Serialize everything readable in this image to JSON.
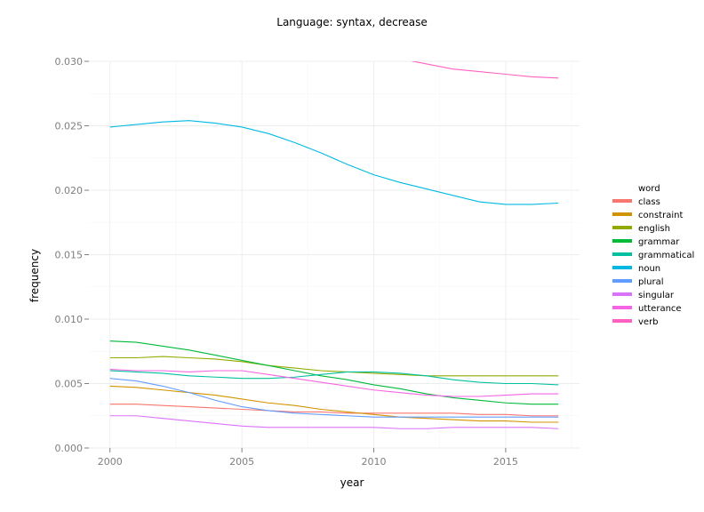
{
  "chart_data": {
    "type": "line",
    "title": "Language: syntax, decrease",
    "xlabel": "year",
    "ylabel": "frequency",
    "xlim": [
      1999.2,
      2017.8
    ],
    "ylim": [
      0.0,
      0.03
    ],
    "x_ticks": [
      2000,
      2005,
      2010,
      2015
    ],
    "x_tick_labels": [
      "2000",
      "2005",
      "2010",
      "2015"
    ],
    "y_ticks": [
      0.0,
      0.005,
      0.01,
      0.015,
      0.02,
      0.025,
      0.03
    ],
    "y_tick_labels": [
      "0.000",
      "0.005",
      "0.010",
      "0.015",
      "0.020",
      "0.025",
      "0.030"
    ],
    "grid": true,
    "legend": {
      "title": "word",
      "placement": "right"
    },
    "x": [
      2000,
      2001,
      2002,
      2003,
      2004,
      2005,
      2006,
      2007,
      2008,
      2009,
      2010,
      2011,
      2012,
      2013,
      2014,
      2015,
      2016,
      2017
    ],
    "series": [
      {
        "name": "class",
        "color": "#f8766d",
        "values": [
          0.0034,
          0.0034,
          0.0033,
          0.0032,
          0.0031,
          0.003,
          0.0029,
          0.0028,
          0.0028,
          0.0027,
          0.0027,
          0.0027,
          0.0027,
          0.0027,
          0.0026,
          0.0026,
          0.0025,
          0.0025
        ]
      },
      {
        "name": "constraint",
        "color": "#d39200",
        "values": [
          0.0048,
          0.0047,
          0.0045,
          0.0043,
          0.0041,
          0.0038,
          0.0035,
          0.0033,
          0.003,
          0.0028,
          0.0026,
          0.0024,
          0.0023,
          0.0022,
          0.0021,
          0.0021,
          0.002,
          0.002
        ]
      },
      {
        "name": "english",
        "color": "#93aa00",
        "values": [
          0.007,
          0.007,
          0.0071,
          0.007,
          0.0069,
          0.0067,
          0.0064,
          0.0062,
          0.006,
          0.0059,
          0.0058,
          0.0057,
          0.0056,
          0.0056,
          0.0056,
          0.0056,
          0.0056,
          0.0056
        ]
      },
      {
        "name": "grammar",
        "color": "#00ba38",
        "values": [
          0.0083,
          0.0082,
          0.0079,
          0.0076,
          0.0072,
          0.0068,
          0.0064,
          0.006,
          0.0056,
          0.0053,
          0.0049,
          0.0046,
          0.0042,
          0.0039,
          0.0037,
          0.0035,
          0.0034,
          0.0034
        ]
      },
      {
        "name": "grammatical",
        "color": "#00c19f",
        "values": [
          0.006,
          0.0059,
          0.0058,
          0.0056,
          0.0055,
          0.0054,
          0.0054,
          0.0055,
          0.0057,
          0.0059,
          0.0059,
          0.0058,
          0.0056,
          0.0053,
          0.0051,
          0.005,
          0.005,
          0.0049
        ]
      },
      {
        "name": "noun",
        "color": "#00b9e3",
        "values": [
          0.0249,
          0.0251,
          0.0253,
          0.0254,
          0.0252,
          0.0249,
          0.0244,
          0.0237,
          0.0229,
          0.022,
          0.0212,
          0.0206,
          0.0201,
          0.0196,
          0.0191,
          0.0189,
          0.0189,
          0.019
        ]
      },
      {
        "name": "plural",
        "color": "#619cff",
        "values": [
          0.0054,
          0.0052,
          0.0048,
          0.0043,
          0.0037,
          0.0032,
          0.0029,
          0.0027,
          0.0026,
          0.0025,
          0.0024,
          0.0024,
          0.0024,
          0.0024,
          0.0024,
          0.0024,
          0.0024,
          0.0024
        ]
      },
      {
        "name": "singular",
        "color": "#db72fb",
        "values": [
          0.0025,
          0.0025,
          0.0023,
          0.0021,
          0.0019,
          0.0017,
          0.0016,
          0.0016,
          0.0016,
          0.0016,
          0.0016,
          0.0015,
          0.0015,
          0.0016,
          0.0016,
          0.0016,
          0.0016,
          0.0015
        ]
      },
      {
        "name": "utterance",
        "color": "#f564e3",
        "values": [
          0.0061,
          0.006,
          0.006,
          0.0059,
          0.006,
          0.006,
          0.0057,
          0.0054,
          0.0051,
          0.0048,
          0.0045,
          0.0043,
          0.0041,
          0.004,
          0.004,
          0.0041,
          0.0042,
          0.0042
        ]
      },
      {
        "name": "verb",
        "color": "#ff61c3",
        "values": [
          null,
          null,
          null,
          null,
          null,
          null,
          null,
          null,
          null,
          null,
          null,
          0.0302,
          0.0298,
          0.0294,
          0.0292,
          0.029,
          0.0288,
          0.0287
        ]
      }
    ]
  }
}
